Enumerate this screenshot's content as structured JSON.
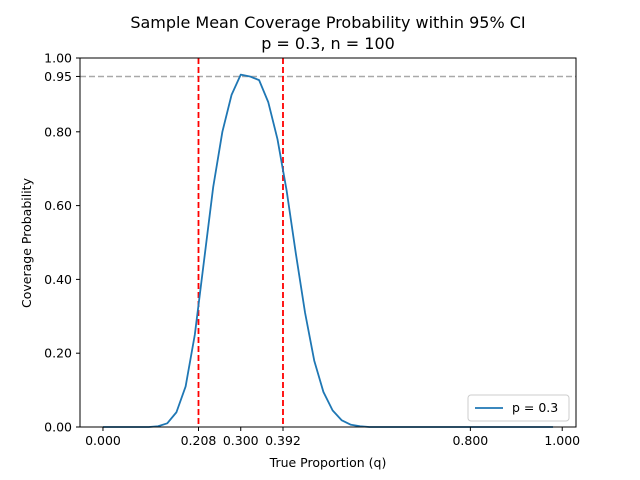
{
  "chart_data": {
    "type": "line",
    "title": "Sample Mean Coverage Probability within 95% CI",
    "subtitle": "p = 0.3, n = 100",
    "xlabel": "True Proportion (q)",
    "ylabel": "Coverage Probability",
    "xlim": [
      -0.05,
      1.03
    ],
    "ylim": [
      0.0,
      1.0
    ],
    "x_ticks": [
      {
        "value": 0.0,
        "label": "0.000"
      },
      {
        "value": 0.208,
        "label": "0.208"
      },
      {
        "value": 0.3,
        "label": "0.300"
      },
      {
        "value": 0.392,
        "label": "0.392"
      },
      {
        "value": 0.8,
        "label": "0.800"
      },
      {
        "value": 1.0,
        "label": "1.000"
      }
    ],
    "y_ticks": [
      {
        "value": 0.0,
        "label": "0.00"
      },
      {
        "value": 0.2,
        "label": "0.20"
      },
      {
        "value": 0.4,
        "label": "0.40"
      },
      {
        "value": 0.6,
        "label": "0.60"
      },
      {
        "value": 0.8,
        "label": "0.80"
      },
      {
        "value": 0.95,
        "label": "0.95"
      },
      {
        "value": 1.0,
        "label": "1.00"
      }
    ],
    "grid": false,
    "legend_position": "lower-right",
    "series": [
      {
        "name": "p = 0.3",
        "color": "#1f77b4",
        "x": [
          0.0,
          0.02,
          0.04,
          0.06,
          0.08,
          0.1,
          0.12,
          0.14,
          0.16,
          0.18,
          0.2,
          0.22,
          0.24,
          0.26,
          0.28,
          0.3,
          0.32,
          0.34,
          0.36,
          0.38,
          0.4,
          0.42,
          0.44,
          0.46,
          0.48,
          0.5,
          0.52,
          0.54,
          0.56,
          0.58,
          0.6,
          0.65,
          0.7,
          0.75,
          0.8,
          0.85,
          0.9,
          0.95,
          0.98
        ],
        "values": [
          0.0,
          0.0,
          0.0,
          0.0,
          0.0,
          0.0,
          0.002,
          0.01,
          0.04,
          0.11,
          0.25,
          0.45,
          0.65,
          0.8,
          0.9,
          0.955,
          0.95,
          0.94,
          0.88,
          0.78,
          0.64,
          0.47,
          0.31,
          0.18,
          0.095,
          0.045,
          0.018,
          0.006,
          0.002,
          0.0,
          0.0,
          0.0,
          0.0,
          0.0,
          0.0,
          0.0,
          0.0,
          0.0,
          0.0
        ]
      }
    ],
    "reference_lines": [
      {
        "orientation": "horizontal",
        "value": 0.95,
        "color": "#a9a9a9",
        "style": "dashed"
      },
      {
        "orientation": "vertical",
        "value": 0.208,
        "color": "#ff0000",
        "style": "dashed"
      },
      {
        "orientation": "vertical",
        "value": 0.392,
        "color": "#ff0000",
        "style": "dashed"
      }
    ]
  }
}
